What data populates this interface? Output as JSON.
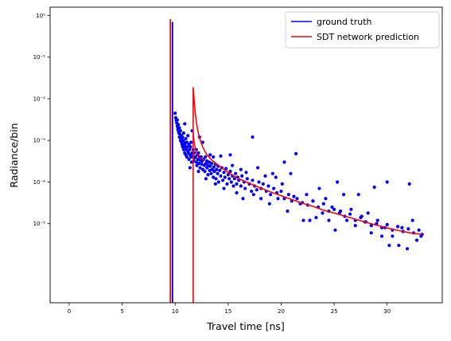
{
  "chart_data": {
    "type": "scatter",
    "title": "",
    "xlabel": "Travel time [ns]",
    "ylabel": "Radiance/bin",
    "xlim": [
      -1.8,
      35.2
    ],
    "ylim_log10": [
      -6.9,
      0.2
    ],
    "y_scale": "log",
    "grid": false,
    "legend_position": "top-right",
    "x_ticks": [
      0,
      5,
      10,
      15,
      20,
      25,
      30
    ],
    "x_tick_labels": [
      "0",
      "5",
      "10",
      "15",
      "20",
      "25",
      "30"
    ],
    "y_ticks": [
      1e-05,
      0.0001,
      0.001,
      0.01,
      0.1,
      1
    ],
    "y_tick_labels": [
      "10⁻⁵",
      "10⁻⁴",
      "10⁻³",
      "10⁻²",
      "10⁻¹",
      "10⁰"
    ],
    "series": [
      {
        "name": "ground truth",
        "kind": "scatter+spike",
        "color": "#0000ff",
        "spike": {
          "x": 9.75,
          "y": 0.7
        },
        "points": [
          [
            10.0,
            0.0045
          ],
          [
            10.05,
            0.0035
          ],
          [
            10.1,
            0.003
          ],
          [
            10.15,
            0.0026
          ],
          [
            10.2,
            0.0022
          ],
          [
            10.2,
            0.0031
          ],
          [
            10.25,
            0.0019
          ],
          [
            10.3,
            0.0017
          ],
          [
            10.3,
            0.0024
          ],
          [
            10.35,
            0.0015
          ],
          [
            10.4,
            0.002
          ],
          [
            10.4,
            0.0012
          ],
          [
            10.45,
            0.0014
          ],
          [
            10.5,
            0.001
          ],
          [
            10.5,
            0.0017
          ],
          [
            10.55,
            0.0011
          ],
          [
            10.6,
            0.0009
          ],
          [
            10.6,
            0.0013
          ],
          [
            10.65,
            0.0008
          ],
          [
            10.7,
            0.0012
          ],
          [
            10.7,
            0.0007
          ],
          [
            10.75,
            0.001
          ],
          [
            10.8,
            0.0006
          ],
          [
            10.8,
            0.0015
          ],
          [
            10.85,
            0.0009
          ],
          [
            10.9,
            0.0005
          ],
          [
            10.9,
            0.0008
          ],
          [
            10.95,
            0.0007
          ],
          [
            11.0,
            0.0011
          ],
          [
            11.0,
            0.00045
          ],
          [
            11.05,
            0.0006
          ],
          [
            11.1,
            0.0009
          ],
          [
            11.1,
            0.0004
          ],
          [
            11.15,
            0.0007
          ],
          [
            11.2,
            0.00055
          ],
          [
            11.2,
            0.0013
          ],
          [
            11.25,
            0.0005
          ],
          [
            11.3,
            0.0008
          ],
          [
            11.3,
            0.00035
          ],
          [
            11.35,
            0.0006
          ],
          [
            11.4,
            0.00045
          ],
          [
            11.45,
            0.0007
          ],
          [
            11.5,
            0.0004
          ],
          [
            11.5,
            0.0009
          ],
          [
            11.55,
            0.0003
          ],
          [
            11.6,
            0.0005
          ],
          [
            11.65,
            0.00042
          ],
          [
            11.7,
            0.0006
          ],
          [
            11.75,
            0.00032
          ],
          [
            11.8,
            0.0005
          ],
          [
            11.85,
            0.00038
          ],
          [
            11.9,
            0.0004
          ],
          [
            12.0,
            0.0003
          ],
          [
            12.0,
            0.0006
          ],
          [
            12.05,
            0.00025
          ],
          [
            12.1,
            0.00045
          ],
          [
            12.15,
            0.00035
          ],
          [
            12.2,
            0.0005
          ],
          [
            12.25,
            0.00028
          ],
          [
            12.3,
            0.0004
          ],
          [
            12.35,
            0.00022
          ],
          [
            12.4,
            0.00033
          ],
          [
            12.45,
            0.0004
          ],
          [
            12.5,
            0.00027
          ],
          [
            12.55,
            0.00032
          ],
          [
            12.6,
            0.0002
          ],
          [
            12.7,
            0.00035
          ],
          [
            12.75,
            0.00025
          ],
          [
            12.8,
            0.00018
          ],
          [
            12.85,
            0.0004
          ],
          [
            12.9,
            0.00028
          ],
          [
            13.0,
            0.00022
          ],
          [
            13.0,
            0.00032
          ],
          [
            13.1,
            0.00015
          ],
          [
            13.1,
            0.00025
          ],
          [
            13.2,
            0.0003
          ],
          [
            13.25,
            0.00019
          ],
          [
            13.3,
            0.00024
          ],
          [
            13.4,
            0.00016
          ],
          [
            13.45,
            0.00028
          ],
          [
            13.5,
            0.0002
          ],
          [
            13.6,
            0.00013
          ],
          [
            13.65,
            0.00023
          ],
          [
            13.7,
            0.00018
          ],
          [
            13.8,
            0.00027
          ],
          [
            13.85,
            0.00012
          ],
          [
            13.9,
            0.0002
          ],
          [
            14.0,
            0.00016
          ],
          [
            14.05,
            0.00024
          ],
          [
            14.1,
            0.0001
          ],
          [
            14.2,
            0.00019
          ],
          [
            14.3,
            0.00014
          ],
          [
            14.4,
            0.00022
          ],
          [
            14.5,
            0.00011
          ],
          [
            14.6,
            0.00017
          ],
          [
            14.7,
            0.00013
          ],
          [
            14.8,
            0.00021
          ],
          [
            14.9,
            9e-05
          ],
          [
            15.0,
            0.00015
          ],
          [
            15.1,
            0.00012
          ],
          [
            15.2,
            0.00018
          ],
          [
            15.3,
            0.0001
          ],
          [
            15.4,
            0.00014
          ],
          [
            15.5,
            8e-05
          ],
          [
            15.6,
            0.00012
          ],
          [
            15.7,
            0.00016
          ],
          [
            15.8,
            9e-05
          ],
          [
            15.9,
            0.00013
          ],
          [
            16.0,
            0.00011
          ],
          [
            16.2,
            8e-05
          ],
          [
            16.3,
            0.00014
          ],
          [
            16.5,
            0.0001
          ],
          [
            16.6,
            7e-05
          ],
          [
            16.8,
            0.00012
          ],
          [
            17.0,
            9e-05
          ],
          [
            17.2,
            6e-05
          ],
          [
            17.3,
            0.00011
          ],
          [
            17.5,
            8e-05
          ],
          [
            17.7,
            6.5e-05
          ],
          [
            17.9,
            0.0001
          ],
          [
            18.1,
            7e-05
          ],
          [
            18.3,
            9e-05
          ],
          [
            18.6,
            6e-05
          ],
          [
            18.8,
            8e-05
          ],
          [
            19.0,
            5e-05
          ],
          [
            19.3,
            7e-05
          ],
          [
            19.6,
            5.5e-05
          ],
          [
            20.0,
            6e-05
          ],
          [
            20.3,
            4e-05
          ],
          [
            20.7,
            5e-05
          ],
          [
            21.0,
            3.5e-05
          ],
          [
            21.5,
            4e-05
          ],
          [
            22.0,
            3.2e-05
          ],
          [
            22.5,
            2.8e-05
          ],
          [
            23.0,
            3.5e-05
          ],
          [
            23.5,
            2.5e-05
          ],
          [
            24.0,
            3e-05
          ],
          [
            24.5,
            2e-05
          ],
          [
            25.0,
            2.2e-05
          ],
          [
            25.5,
            1.8e-05
          ],
          [
            26.0,
            1.5e-05
          ],
          [
            26.5,
            1.7e-05
          ],
          [
            27.0,
            1.2e-05
          ],
          [
            27.5,
            1.4e-05
          ],
          [
            28.0,
            1.1e-05
          ],
          [
            28.5,
            9e-06
          ],
          [
            29.0,
            1e-05
          ],
          [
            29.5,
            8e-06
          ],
          [
            30.0,
            9.5e-06
          ],
          [
            30.5,
            7e-06
          ],
          [
            31.0,
            8.5e-06
          ],
          [
            31.5,
            6.5e-06
          ],
          [
            32.0,
            7.5e-06
          ],
          [
            32.5,
            6e-06
          ],
          [
            33.0,
            7e-06
          ],
          [
            33.3,
            5.5e-06
          ],
          [
            10.9,
            0.0025
          ],
          [
            11.6,
            0.0017
          ],
          [
            11.4,
            0.00022
          ],
          [
            12.2,
            0.00018
          ],
          [
            12.3,
            0.0012
          ],
          [
            12.6,
            0.0009
          ],
          [
            12.9,
            0.00012
          ],
          [
            13.3,
            0.00045
          ],
          [
            13.6,
            0.0004
          ],
          [
            13.8,
            9e-05
          ],
          [
            14.3,
            0.00042
          ],
          [
            14.6,
            7e-05
          ],
          [
            15.2,
            0.00045
          ],
          [
            15.4,
            0.00025
          ],
          [
            15.8,
            5.5e-05
          ],
          [
            16.2,
            0.0002
          ],
          [
            16.4,
            4e-05
          ],
          [
            16.7,
            0.00017
          ],
          [
            17.3,
            0.0012
          ],
          [
            17.4,
            5e-05
          ],
          [
            17.8,
            0.00022
          ],
          [
            18.1,
            4e-05
          ],
          [
            18.5,
            0.00014
          ],
          [
            18.9,
            3e-05
          ],
          [
            19.2,
            0.00016
          ],
          [
            19.5,
            0.00013
          ],
          [
            19.7,
            4e-05
          ],
          [
            20.1,
            9e-05
          ],
          [
            20.3,
            0.0003
          ],
          [
            20.6,
            2e-05
          ],
          [
            20.9,
            0.00016
          ],
          [
            21.2,
            4.5e-05
          ],
          [
            21.4,
            0.00048
          ],
          [
            21.8,
            3e-05
          ],
          [
            22.1,
            1.2e-05
          ],
          [
            22.4,
            5e-05
          ],
          [
            22.7,
            1.2e-05
          ],
          [
            23.0,
            3.5e-05
          ],
          [
            23.3,
            1.4e-05
          ],
          [
            23.6,
            7e-05
          ],
          [
            23.9,
            1.8e-05
          ],
          [
            24.2,
            4e-05
          ],
          [
            24.5,
            1.2e-05
          ],
          [
            24.8,
            2.5e-05
          ],
          [
            25.1,
            7e-06
          ],
          [
            25.3,
            0.0001
          ],
          [
            25.6,
            2e-05
          ],
          [
            25.9,
            5e-05
          ],
          [
            26.2,
            1.2e-05
          ],
          [
            26.6,
            2.2e-05
          ],
          [
            27.0,
            9e-06
          ],
          [
            27.3,
            5e-05
          ],
          [
            27.6,
            1.5e-05
          ],
          [
            27.9,
            1.1e-05
          ],
          [
            28.2,
            1.8e-05
          ],
          [
            28.5,
            6e-06
          ],
          [
            28.8,
            7.5e-05
          ],
          [
            29.1,
            1.2e-05
          ],
          [
            29.5,
            5e-06
          ],
          [
            29.8,
            8e-06
          ],
          [
            30.0,
            0.0001
          ],
          [
            30.2,
            3e-06
          ],
          [
            30.5,
            5e-06
          ],
          [
            31.1,
            3e-06
          ],
          [
            31.4,
            8e-06
          ],
          [
            31.9,
            2.5e-06
          ],
          [
            32.1,
            9e-05
          ],
          [
            32.4,
            1.2e-05
          ],
          [
            32.8,
            4e-06
          ],
          [
            33.2,
            5e-06
          ]
        ]
      },
      {
        "name": "SDT network prediction",
        "kind": "line+spike",
        "color": "#ff0000",
        "spike": {
          "x": 9.55,
          "y": 0.82
        },
        "curve": [
          [
            11.7,
            0.019
          ],
          [
            11.8,
            0.0085
          ],
          [
            11.9,
            0.0045
          ],
          [
            12.0,
            0.0028
          ],
          [
            12.1,
            0.0019
          ],
          [
            12.25,
            0.0013
          ],
          [
            12.4,
            0.00095
          ],
          [
            12.6,
            0.0007
          ],
          [
            12.8,
            0.00055
          ],
          [
            13.0,
            0.00045
          ],
          [
            13.5,
            0.00033
          ],
          [
            14.0,
            0.00026
          ],
          [
            14.5,
            0.00021
          ],
          [
            15.0,
            0.00017
          ],
          [
            16.0,
            0.00012
          ],
          [
            17.0,
            9.3e-05
          ],
          [
            18.0,
            7.3e-05
          ],
          [
            19.0,
            5.8e-05
          ],
          [
            20.0,
            4.7e-05
          ],
          [
            21.0,
            3.8e-05
          ],
          [
            22.0,
            3.1e-05
          ],
          [
            23.0,
            2.6e-05
          ],
          [
            24.0,
            2.1e-05
          ],
          [
            25.0,
            1.8e-05
          ],
          [
            26.0,
            1.52e-05
          ],
          [
            27.0,
            1.28e-05
          ],
          [
            28.0,
            1.08e-05
          ],
          [
            29.0,
            9.2e-06
          ],
          [
            30.0,
            7.9e-06
          ],
          [
            31.0,
            6.9e-06
          ],
          [
            32.0,
            6.1e-06
          ],
          [
            33.3,
            5.5e-06
          ]
        ],
        "secondary": [
          [
            11.7,
            0.0016
          ],
          [
            11.8,
            0.0009
          ],
          [
            11.9,
            0.00065
          ],
          [
            12.0,
            0.00052
          ],
          [
            12.1,
            0.00045
          ],
          [
            12.25,
            0.0004
          ],
          [
            12.4,
            0.00037
          ],
          [
            12.6,
            0.00035
          ],
          [
            12.8,
            0.00034
          ]
        ]
      }
    ]
  }
}
